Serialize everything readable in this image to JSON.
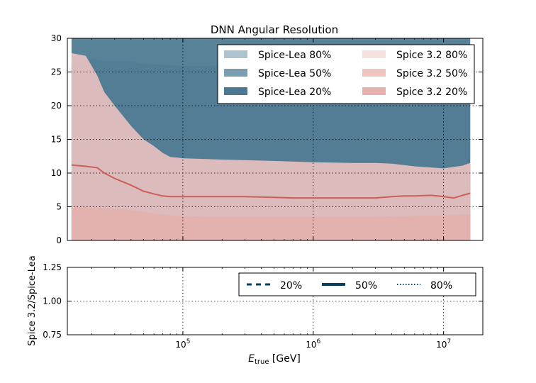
{
  "chart_data": {
    "type": "area",
    "title": "DNN Angular Resolution",
    "xscale": "log",
    "xlim": [
      13000,
      20000000
    ],
    "xticks": [
      {
        "value": 100000,
        "base": "10",
        "exp": "5"
      },
      {
        "value": 1000000,
        "base": "10",
        "exp": "6"
      },
      {
        "value": 10000000,
        "base": "10",
        "exp": "7"
      }
    ],
    "xlabel": {
      "main": "E",
      "sub": "true",
      "rest": " [GeV]"
    },
    "grid": true,
    "legend_position": "top-right",
    "top_panel": {
      "ylim": [
        0,
        30
      ],
      "yticks": [
        "0",
        "5",
        "10",
        "15",
        "20",
        "25",
        "30"
      ],
      "series": [
        {
          "name": "Spice-Lea 80%",
          "color": "#adc3cf",
          "kind": "band",
          "lower": 0,
          "x": [
            14000,
            16000000
          ],
          "y": [
            30,
            30
          ]
        },
        {
          "name": "Spice-Lea 50%",
          "color": "#7b9db2",
          "kind": "band",
          "lower": 0,
          "x": [
            14000,
            20000,
            25000,
            30000,
            40000,
            50000,
            60000,
            80000,
            100000,
            150000,
            200000,
            300000,
            400000,
            600000,
            1000000,
            2000000,
            3000000,
            5000000,
            10000000,
            16000000
          ],
          "y": [
            25.9,
            27.0,
            26.6,
            26.6,
            26.6,
            26.2,
            26.1,
            26.0,
            25.9,
            25.9,
            26.0,
            26.0,
            26.0,
            26.0,
            26.0,
            26.0,
            26.0,
            26.0,
            26.0,
            26.0
          ]
        },
        {
          "name": "Spice-Lea 20%",
          "color": "#4b7890",
          "kind": "band",
          "lower": 0,
          "x": [
            14000,
            16000000
          ],
          "y": [
            30,
            30
          ]
        },
        {
          "name": "Spice 3.2 80%",
          "color": "#f5e1df",
          "kind": "band",
          "lower": 0,
          "x": [
            14000,
            16000000
          ],
          "y": [
            0,
            0
          ]
        },
        {
          "name": "Spice 3.2 50%",
          "color": "#eec4c0",
          "kind": "band",
          "lower": 0,
          "x": [
            14000,
            18000,
            22000,
            25000,
            30000,
            40000,
            50000,
            60000,
            70000,
            80000,
            100000,
            200000,
            500000,
            1000000,
            2000000,
            3000000,
            4000000,
            6000000,
            10000000,
            14000000,
            16000000
          ],
          "y": [
            27.8,
            27.4,
            24.5,
            22.0,
            20.0,
            17.0,
            15.0,
            14.0,
            13.0,
            12.4,
            12.2,
            12.0,
            11.8,
            11.6,
            11.5,
            11.5,
            11.4,
            11.0,
            10.7,
            11.1,
            11.5
          ]
        },
        {
          "name": "Spice 3.2 20%",
          "color": "#e4b1ad",
          "kind": "band",
          "lower": 0,
          "x": [
            14000,
            20000,
            40000,
            60000,
            80000,
            100000,
            200000,
            500000,
            1000000,
            2000000,
            5000000,
            10000000,
            16000000
          ],
          "y": [
            5.0,
            4.9,
            4.5,
            4.0,
            3.7,
            3.6,
            3.5,
            3.5,
            3.5,
            3.5,
            3.6,
            3.7,
            3.9
          ]
        },
        {
          "name": "",
          "color": "#cc5f56",
          "kind": "line",
          "x": [
            14000,
            18000,
            22000,
            25000,
            30000,
            40000,
            50000,
            60000,
            70000,
            80000,
            100000,
            150000,
            200000,
            300000,
            500000,
            700000,
            1000000,
            2000000,
            3000000,
            4000000,
            5000000,
            6000000,
            8000000,
            9000000,
            10000000,
            12000000,
            14000000,
            16000000
          ],
          "y": [
            11.2,
            11.0,
            10.8,
            10.0,
            9.2,
            8.2,
            7.3,
            6.9,
            6.6,
            6.5,
            6.5,
            6.5,
            6.5,
            6.5,
            6.4,
            6.3,
            6.3,
            6.3,
            6.3,
            6.5,
            6.6,
            6.6,
            6.7,
            6.6,
            6.5,
            6.3,
            6.7,
            7.0
          ]
        }
      ]
    },
    "bottom_panel": {
      "ylabel": "Spice 3.2/Spice-Lea",
      "ylim": [
        0.75,
        1.25
      ],
      "yticks": [
        "0.75",
        "1.00",
        "1.25"
      ],
      "legend_position": "top-right",
      "legend": [
        {
          "name": "20%",
          "style": "dashed",
          "color": "#073f5e"
        },
        {
          "name": "50%",
          "style": "solid",
          "color": "#073f5e"
        },
        {
          "name": "80%",
          "style": "dotted",
          "color": "#073f5e"
        }
      ]
    }
  }
}
